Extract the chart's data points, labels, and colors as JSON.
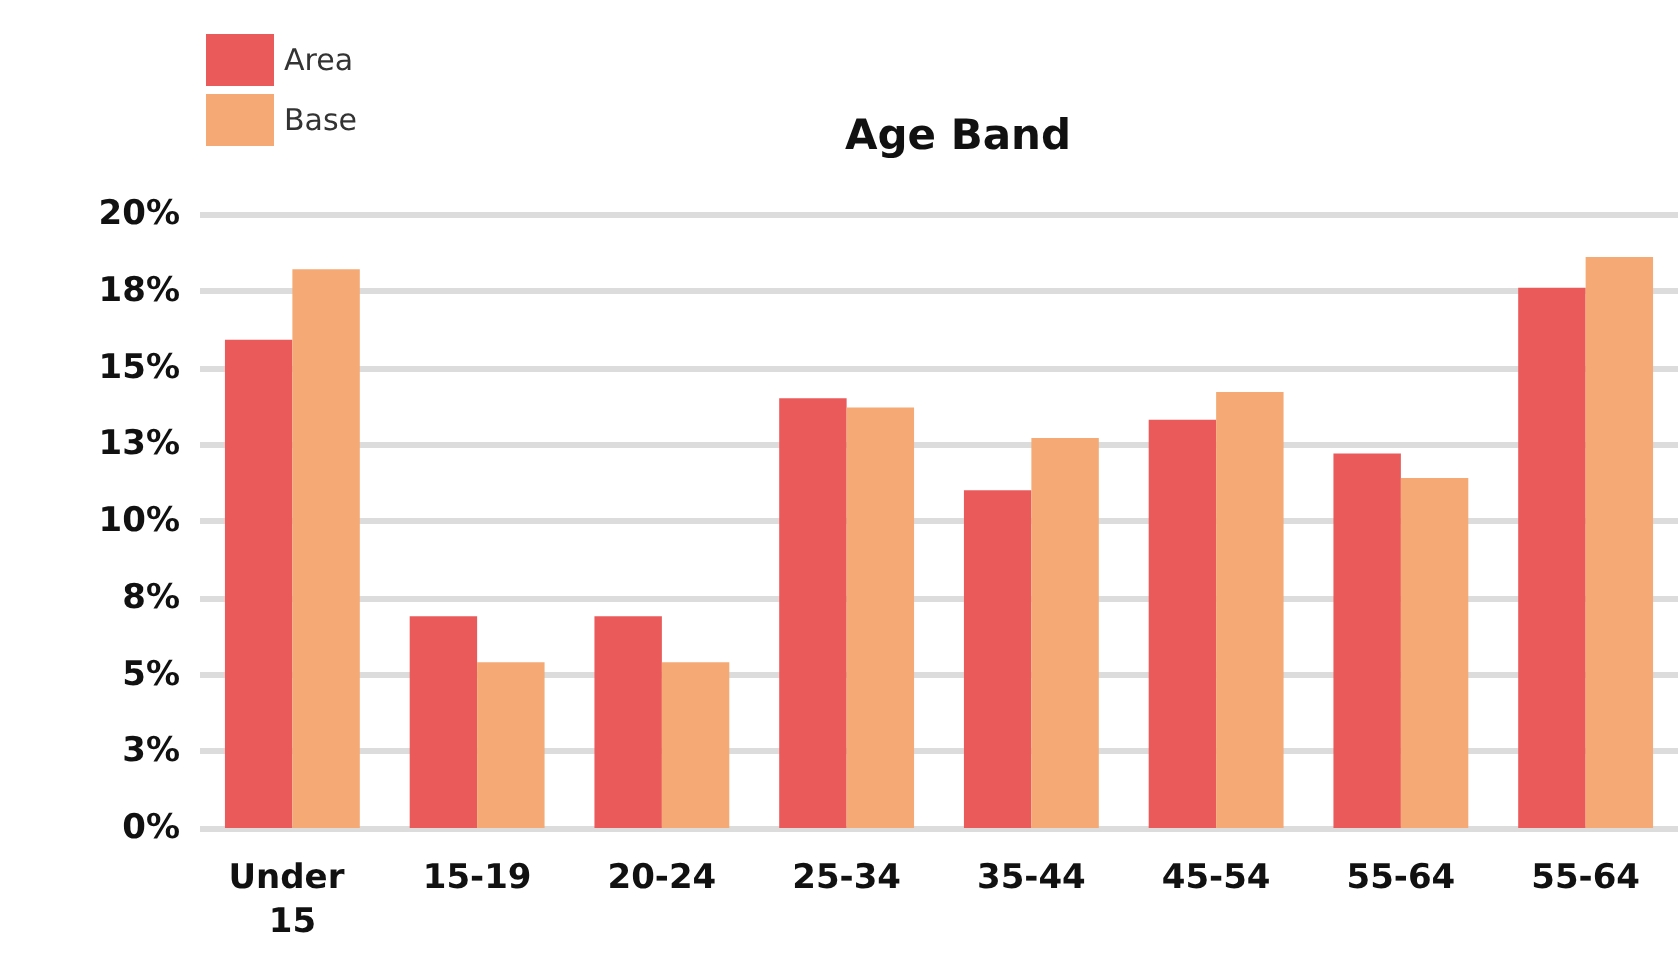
{
  "chart_data": {
    "type": "bar",
    "title": "Age Band",
    "categories": [
      "Under 15",
      "15-19",
      "20-24",
      "25-34",
      "35-44",
      "45-54",
      "55-64",
      "55-64"
    ],
    "series": [
      {
        "name": "Area",
        "color": "#eb5a5a",
        "values": [
          15.9,
          6.9,
          6.9,
          14.0,
          11.0,
          13.3,
          12.2,
          17.6
        ]
      },
      {
        "name": "Base",
        "color": "#f5aa75",
        "values": [
          18.2,
          5.4,
          5.4,
          13.7,
          12.7,
          14.2,
          11.4,
          18.6
        ]
      }
    ],
    "ylim": [
      0,
      20
    ],
    "yticks": [
      {
        "value": 0,
        "label": "0%"
      },
      {
        "value": 2.5,
        "label": "3%"
      },
      {
        "value": 5,
        "label": "5%"
      },
      {
        "value": 7.5,
        "label": "8%"
      },
      {
        "value": 10,
        "label": "10%"
      },
      {
        "value": 12.5,
        "label": "13%"
      },
      {
        "value": 15,
        "label": "15%"
      },
      {
        "value": 17.5,
        "label": "18%"
      },
      {
        "value": 20,
        "label": "20%"
      }
    ],
    "grid": "y",
    "legend": "top left"
  }
}
